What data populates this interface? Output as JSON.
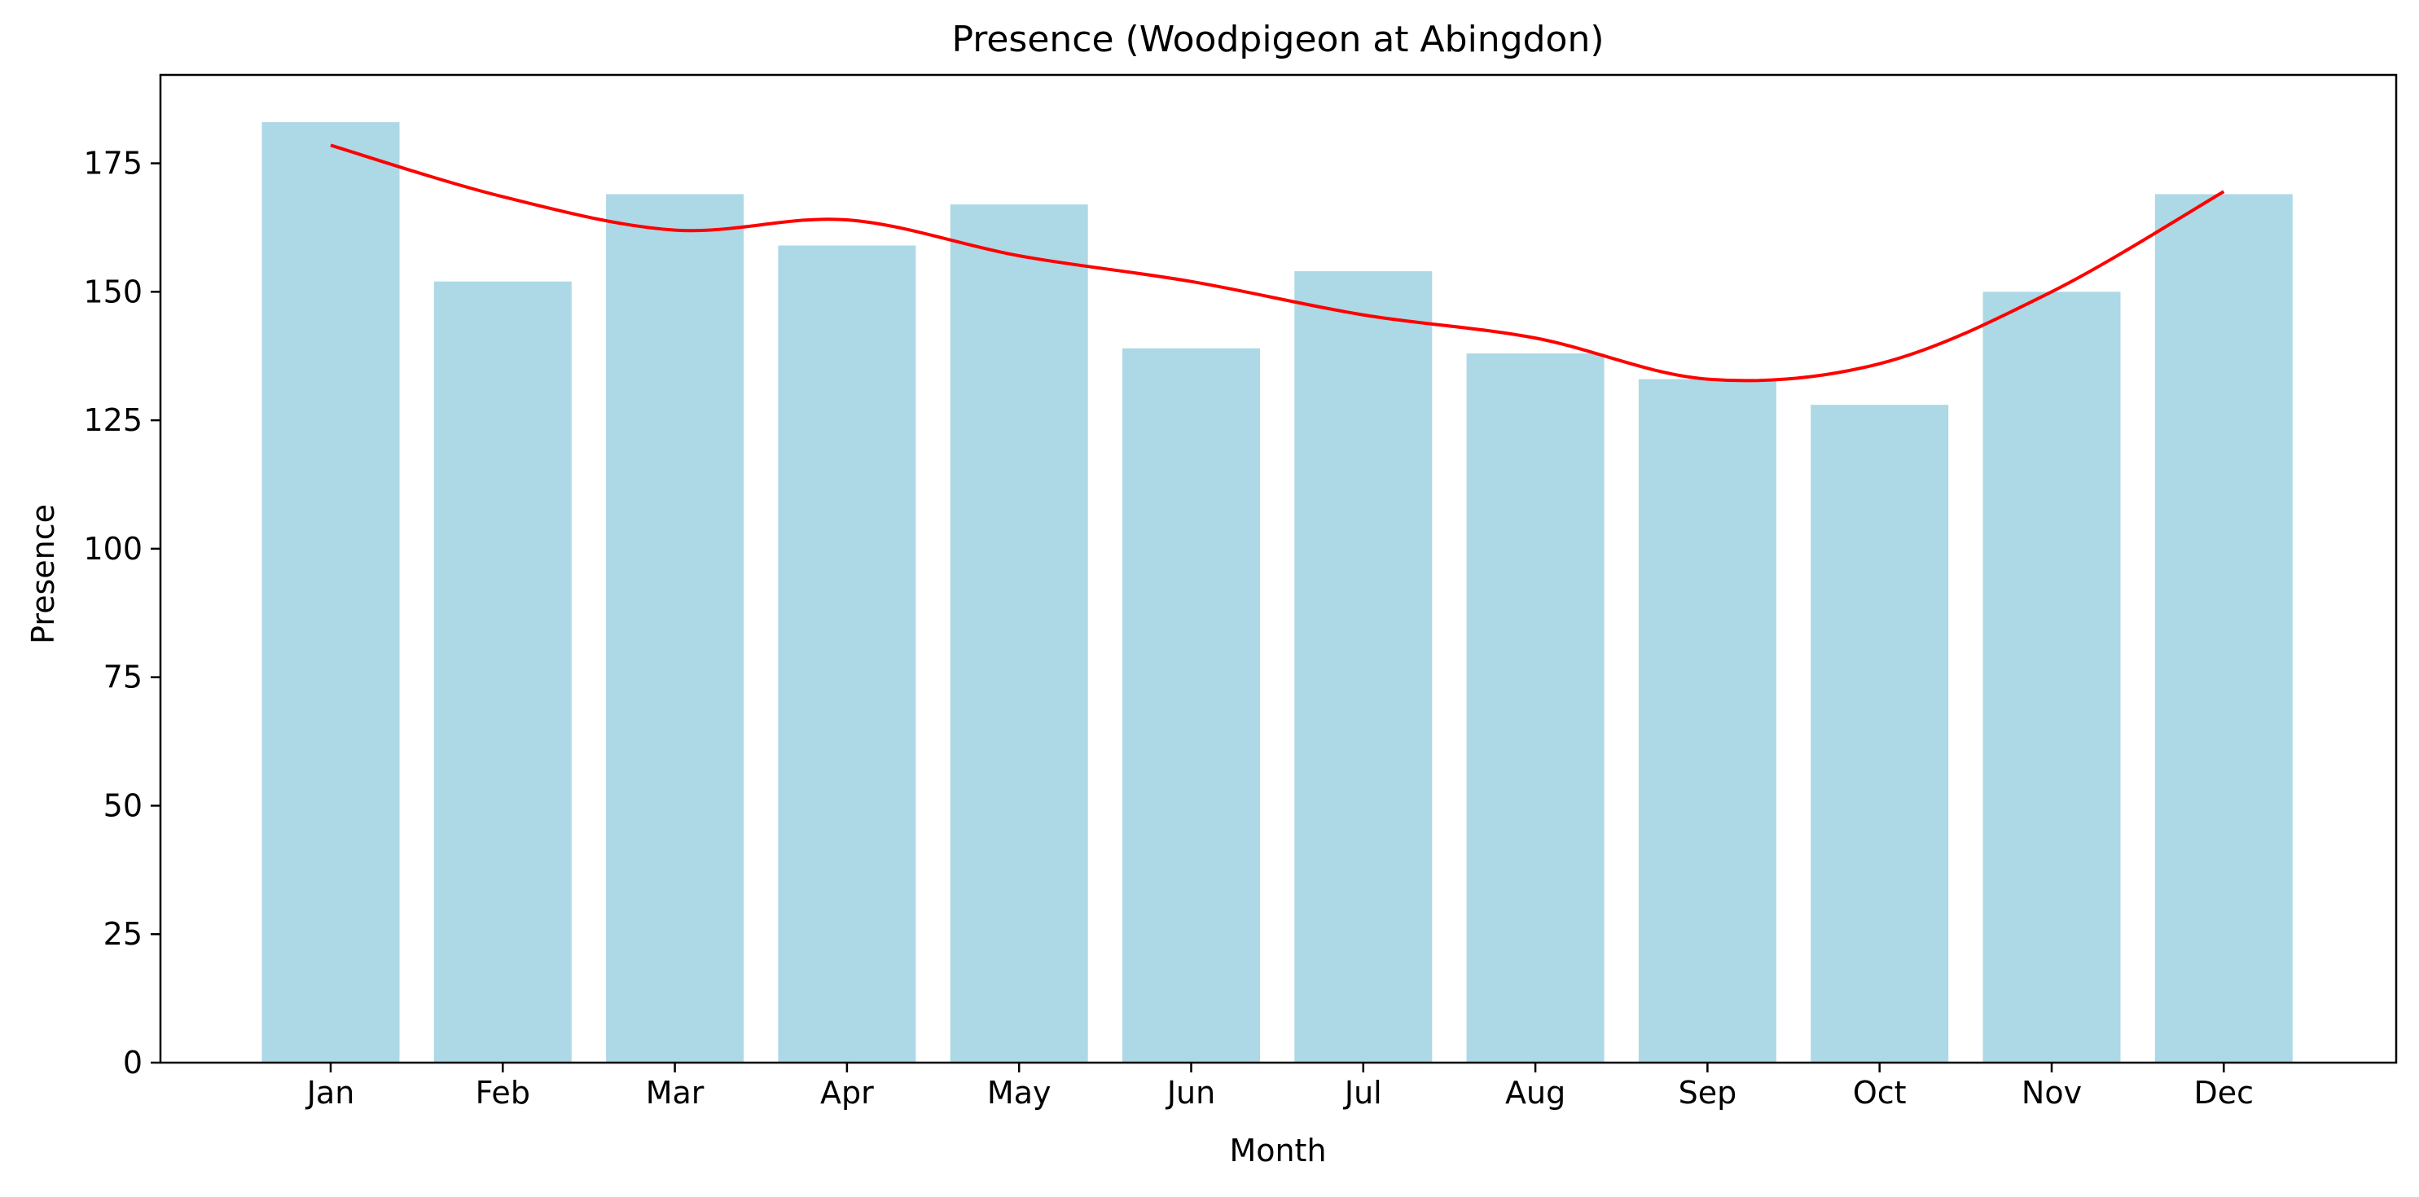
{
  "chart_data": {
    "type": "bar",
    "title": "Presence (Woodpigeon at Abingdon)",
    "xlabel": "Month",
    "ylabel": "Presence",
    "categories": [
      "Jan",
      "Feb",
      "Mar",
      "Apr",
      "May",
      "Jun",
      "Jul",
      "Aug",
      "Sep",
      "Oct",
      "Nov",
      "Dec"
    ],
    "values": [
      183,
      152,
      169,
      159,
      167,
      139,
      154,
      138,
      133,
      128,
      150,
      169
    ],
    "trend_line": [
      178.5,
      168.5,
      162,
      164,
      157,
      152,
      145.5,
      141,
      133,
      136,
      150,
      169.5
    ],
    "ylim": [
      0,
      192.2
    ],
    "yticks": [
      0,
      25,
      50,
      75,
      100,
      125,
      150,
      175
    ],
    "grid": false,
    "legend": "none",
    "colors": {
      "bar": "#add8e6",
      "trend_line": "#ff0000",
      "axes": "#000000"
    }
  }
}
